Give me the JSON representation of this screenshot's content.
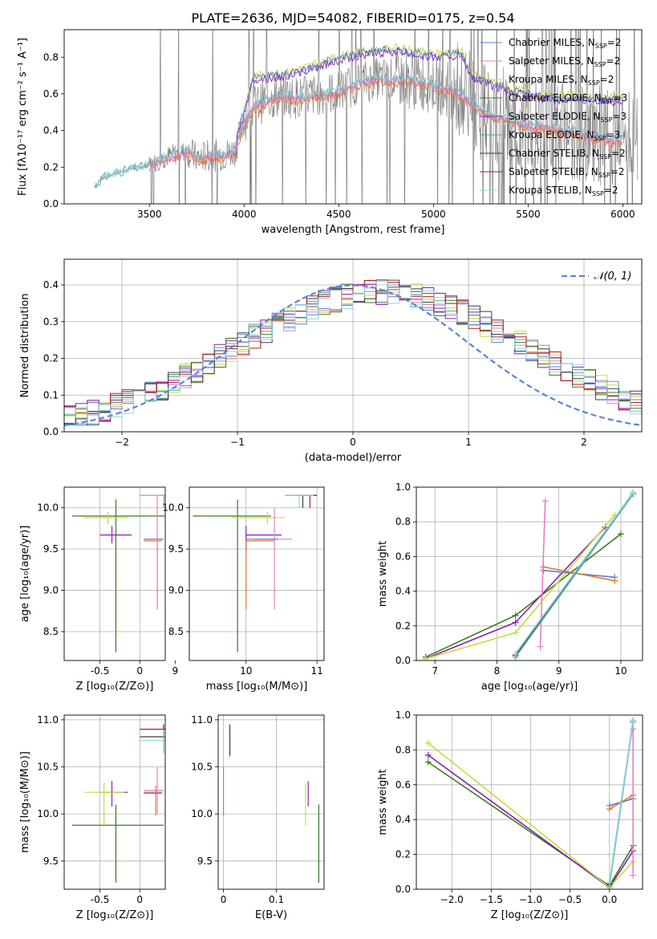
{
  "figure": {
    "title": "PLATE=2636, MJD=54082, FIBERID=0175, z=0.54"
  },
  "colors": {
    "chabrier_miles": "#5b7fd6",
    "salpeter_miles": "#e67fc4",
    "kroupa_miles": "#c6dc3e",
    "chabrier_elodie": "#3a7a1e",
    "salpeter_elodie": "#8a1fb0",
    "kroupa_elodie": "#62a3a0",
    "chabrier_stelib": "#3c3c3c",
    "salpeter_stelib": "#b31b1b",
    "kroupa_stelib": "#8fd3e0",
    "data": "#808080",
    "orange": "#e8742a",
    "gauss": "#5b84d6"
  },
  "legend_spectrum": [
    {
      "text": "Chabrier MILES, N",
      "sub": "SSP",
      "suffix": "=2",
      "color": "#5b7fd6"
    },
    {
      "text": "Salpeter MILES, N",
      "sub": "SSP",
      "suffix": "=2",
      "color": "#e67fc4"
    },
    {
      "text": "Kroupa MILES, N",
      "sub": "SSP",
      "suffix": "=2",
      "color": "#c6dc3e"
    },
    {
      "text": "Chabrier ELODIE, N",
      "sub": "SSP",
      "suffix": "=3",
      "color": "#3a7a1e"
    },
    {
      "text": "Salpeter ELODIE, N",
      "sub": "SSP",
      "suffix": "=3",
      "color": "#8a1fb0"
    },
    {
      "text": "Kroupa ELODIE, N",
      "sub": "SSP",
      "suffix": "=3",
      "color": "#62a3a0"
    },
    {
      "text": "Chabrier STELIB, N",
      "sub": "SSP",
      "suffix": "=2",
      "color": "#3c3c3c"
    },
    {
      "text": "Salpeter STELIB, N",
      "sub": "SSP",
      "suffix": "=2",
      "color": "#b31b1b"
    },
    {
      "text": "Kroupa STELIB, N",
      "sub": "SSP",
      "suffix": "=2",
      "color": "#8fd3e0"
    }
  ],
  "chart_data": [
    {
      "id": "spectrum",
      "type": "line",
      "xlabel": "wavelength [Angstrom, rest frame]",
      "ylabel": "Flux [fλ10⁻¹⁷ erg cm⁻² s⁻¹ A⁻¹]",
      "xlim": [
        3050,
        6100
      ],
      "ylim": [
        0,
        0.95
      ],
      "xticks": [
        3500,
        4000,
        4500,
        5000,
        5500,
        6000
      ],
      "yticks": [
        0.0,
        0.2,
        0.4,
        0.6,
        0.8
      ],
      "model_continuum": [
        [
          3210,
          0.09
        ],
        [
          3250,
          0.14
        ],
        [
          3300,
          0.16
        ],
        [
          3400,
          0.19
        ],
        [
          3500,
          0.21
        ],
        [
          3550,
          0.24
        ],
        [
          3600,
          0.26
        ],
        [
          3700,
          0.29
        ],
        [
          3750,
          0.25
        ],
        [
          3800,
          0.26
        ],
        [
          3900,
          0.27
        ],
        [
          3950,
          0.29
        ],
        [
          4000,
          0.45
        ],
        [
          4050,
          0.53
        ],
        [
          4100,
          0.56
        ],
        [
          4200,
          0.59
        ],
        [
          4300,
          0.58
        ],
        [
          4400,
          0.6
        ],
        [
          4500,
          0.61
        ],
        [
          4600,
          0.66
        ],
        [
          4700,
          0.68
        ],
        [
          4800,
          0.68
        ],
        [
          4900,
          0.67
        ],
        [
          5000,
          0.65
        ],
        [
          5100,
          0.62
        ],
        [
          5150,
          0.6
        ],
        [
          5200,
          0.55
        ],
        [
          5300,
          0.48
        ],
        [
          5400,
          0.46
        ],
        [
          5500,
          0.43
        ],
        [
          5600,
          0.42
        ],
        [
          5700,
          0.4
        ],
        [
          5800,
          0.38
        ],
        [
          5950,
          0.35
        ]
      ],
      "model_upper": [
        [
          3950,
          0.3
        ],
        [
          4050,
          0.67
        ],
        [
          4200,
          0.68
        ],
        [
          4400,
          0.74
        ],
        [
          4600,
          0.8
        ],
        [
          4800,
          0.82
        ],
        [
          5000,
          0.79
        ],
        [
          5150,
          0.8
        ],
        [
          5200,
          0.68
        ],
        [
          5400,
          0.6
        ],
        [
          5600,
          0.56
        ],
        [
          5800,
          0.56
        ],
        [
          5950,
          0.55
        ]
      ]
    },
    {
      "id": "residual_hist",
      "type": "line",
      "xlabel": "(data-model)/error",
      "ylabel": "Normed distribution",
      "xlim": [
        -2.5,
        2.5
      ],
      "ylim": [
        0,
        0.47
      ],
      "xticks": [
        -2,
        -1,
        0,
        1,
        2
      ],
      "xticklabels": [
        "−2",
        "−1",
        "0",
        "1",
        "2"
      ],
      "yticks": [
        0.0,
        0.1,
        0.2,
        0.3,
        0.4
      ],
      "legend": "𝒩(0, 1)",
      "gaussian": {
        "mu": 0,
        "sigma": 1
      }
    },
    {
      "id": "age_vs_Z",
      "type": "scatter",
      "xlabel": "Z [log₁₀(Z/Z⊙)]",
      "ylabel": "age  [log₁₀(age/yr)]",
      "xlim": [
        -0.95,
        0.32
      ],
      "ylim": [
        8.15,
        10.25
      ],
      "xticks": [
        -0.5,
        0.0
      ],
      "yticks": [
        8.5,
        9.0,
        9.5,
        10.0
      ]
    },
    {
      "id": "age_vs_mass",
      "type": "scatter",
      "xlabel": "mass [log₁₀(M/M⊙)]",
      "xlim": [
        9.2,
        11.1
      ],
      "ylim": [
        8.15,
        10.25
      ],
      "xticks": [
        9,
        10,
        11
      ],
      "yticks": [
        8.5,
        9.0,
        9.5,
        10.0
      ]
    },
    {
      "id": "weight_vs_age",
      "type": "line",
      "xlabel": "age  [log₁₀(age/yr)]",
      "ylabel": "mass weight",
      "xlim": [
        6.7,
        10.35
      ],
      "ylim": [
        0,
        1.0
      ],
      "xticks": [
        7,
        8,
        9,
        10
      ],
      "yticks": [
        0.0,
        0.2,
        0.4,
        0.6,
        0.8,
        1.0
      ],
      "series": [
        {
          "color": "#3a7a1e",
          "x": [
            6.85,
            8.3,
            10.0
          ],
          "y": [
            0.02,
            0.26,
            0.73
          ]
        },
        {
          "color": "#8a1fb0",
          "x": [
            6.85,
            8.3,
            9.75
          ],
          "y": [
            0.01,
            0.22,
            0.77
          ]
        },
        {
          "color": "#c6dc3e",
          "x": [
            6.85,
            8.3,
            9.9
          ],
          "y": [
            0.01,
            0.16,
            0.84
          ]
        },
        {
          "color": "#5b7fd6",
          "x": [
            8.75,
            9.9
          ],
          "y": [
            0.52,
            0.48
          ]
        },
        {
          "color": "#e8742a",
          "x": [
            8.75,
            9.9
          ],
          "y": [
            0.54,
            0.46
          ]
        },
        {
          "color": "#e67fc4",
          "x": [
            8.7,
            8.78
          ],
          "y": [
            0.08,
            0.92
          ]
        },
        {
          "color": "#3c3c3c",
          "x": [
            8.3,
            10.2
          ],
          "y": [
            0.03,
            0.97
          ]
        },
        {
          "color": "#62a3a0",
          "x": [
            8.3,
            10.2
          ],
          "y": [
            0.02,
            0.96
          ]
        },
        {
          "color": "#8fd3e0",
          "x": [
            8.3,
            10.2
          ],
          "y": [
            0.04,
            0.97
          ]
        }
      ]
    },
    {
      "id": "mass_vs_Z",
      "type": "scatter",
      "xlabel": "Z [log₁₀(Z/Z⊙)]",
      "ylabel": "mass [log₁₀(M/M⊙)]",
      "xlim": [
        -0.95,
        0.32
      ],
      "ylim": [
        9.2,
        11.05
      ],
      "xticks": [
        -0.5,
        0.0
      ],
      "yticks": [
        9.5,
        10.0,
        10.5,
        11.0
      ]
    },
    {
      "id": "mass_vs_ebv",
      "type": "scatter",
      "xlabel": "E(B-V)",
      "xlim": [
        -0.01,
        0.19
      ],
      "ylim": [
        9.2,
        11.05
      ],
      "xticks": [
        0.0,
        0.1
      ],
      "yticks": [
        9.5,
        10.0,
        10.5,
        11.0
      ]
    },
    {
      "id": "weight_vs_Z",
      "type": "line",
      "xlabel": "Z [log₁₀(Z/Z⊙)]",
      "ylabel": "mass weight",
      "xlim": [
        -2.45,
        0.42
      ],
      "ylim": [
        0,
        1.0
      ],
      "xticks": [
        -2.0,
        -1.5,
        -1.0,
        -0.5,
        0.0
      ],
      "xticklabels": [
        "−2.0",
        "−1.5",
        "−1.0",
        "−0.5",
        "0.0"
      ],
      "yticks": [
        0.0,
        0.2,
        0.4,
        0.6,
        0.8,
        1.0
      ],
      "series": [
        {
          "color": "#3a7a1e",
          "x": [
            -2.3,
            0.0,
            0.3
          ],
          "y": [
            0.73,
            0.02,
            0.25
          ]
        },
        {
          "color": "#8a1fb0",
          "x": [
            -2.3,
            0.0,
            0.3
          ],
          "y": [
            0.77,
            0.01,
            0.22
          ]
        },
        {
          "color": "#c6dc3e",
          "x": [
            -2.3,
            0.0,
            0.3
          ],
          "y": [
            0.84,
            0.01,
            0.16
          ]
        },
        {
          "color": "#5b7fd6",
          "x": [
            0.0,
            0.3
          ],
          "y": [
            0.48,
            0.52
          ]
        },
        {
          "color": "#e8742a",
          "x": [
            0.0,
            0.3
          ],
          "y": [
            0.46,
            0.54
          ]
        },
        {
          "color": "#e67fc4",
          "x": [
            0.3,
            0.3
          ],
          "y": [
            0.08,
            0.92
          ]
        },
        {
          "color": "#3c3c3c",
          "x": [
            0.0,
            0.3
          ],
          "y": [
            0.03,
            0.97
          ]
        },
        {
          "color": "#62a3a0",
          "x": [
            0.0,
            0.3
          ],
          "y": [
            0.02,
            0.96
          ]
        },
        {
          "color": "#8fd3e0",
          "x": [
            0.0,
            0.3
          ],
          "y": [
            0.04,
            0.97
          ]
        }
      ]
    }
  ]
}
